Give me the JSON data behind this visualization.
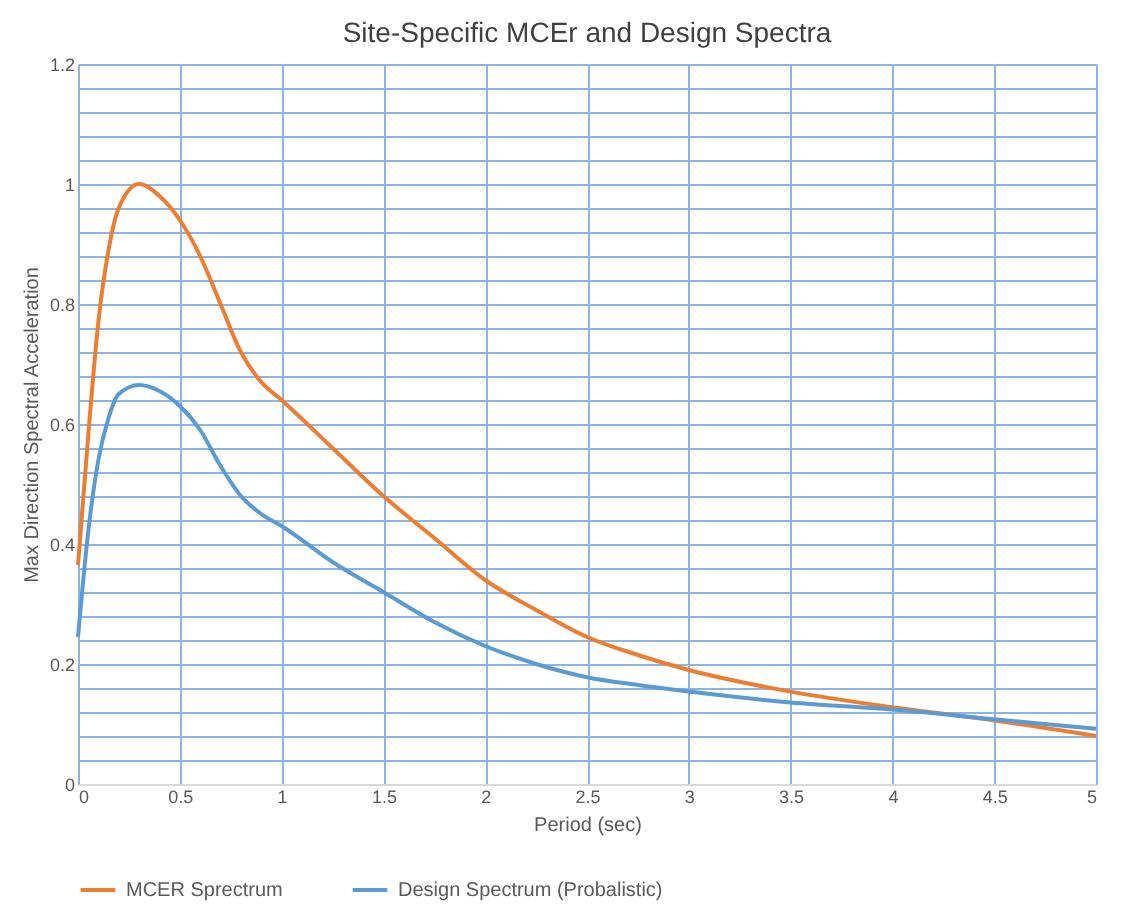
{
  "chart_data": {
    "type": "line",
    "title": "Site-Specific MCEr and Design Spectra",
    "xlabel": "Period (sec)",
    "ylabel": "Max Direction Spectral Acceleration",
    "xlim": [
      0,
      5
    ],
    "xticks": [
      0,
      0.5,
      1,
      1.5,
      2,
      2.5,
      3,
      3.5,
      4,
      4.5,
      5
    ],
    "ylim": [
      0,
      1.2
    ],
    "yticks": [
      0,
      {
        "value": 0.04,
        "label": null
      },
      {
        "value": 0.08,
        "label": null
      },
      {
        "value": 0.12,
        "label": null
      },
      {
        "value": 0.16,
        "label": null
      },
      0.2,
      {
        "value": 0.24,
        "label": null
      },
      {
        "value": 0.28,
        "label": null
      },
      {
        "value": 0.32,
        "label": null
      },
      {
        "value": 0.36,
        "label": null
      },
      0.4,
      {
        "value": 0.44,
        "label": null
      },
      {
        "value": 0.48,
        "label": null
      },
      {
        "value": 0.52,
        "label": null
      },
      {
        "value": 0.56,
        "label": null
      },
      0.6,
      {
        "value": 0.64,
        "label": null
      },
      {
        "value": 0.68,
        "label": null
      },
      {
        "value": 0.72,
        "label": null
      },
      {
        "value": 0.76,
        "label": null
      },
      0.8,
      {
        "value": 0.84,
        "label": null
      },
      {
        "value": 0.88,
        "label": null
      },
      {
        "value": 0.92,
        "label": null
      },
      {
        "value": 0.96,
        "label": null
      },
      1,
      {
        "value": 1.04,
        "label": null
      },
      {
        "value": 1.08,
        "label": null
      },
      {
        "value": 1.12,
        "label": null
      },
      {
        "value": 1.16,
        "label": null
      },
      1.2
    ],
    "grid": true,
    "legend": "bottom",
    "line_style": "solid",
    "marker": "none",
    "x": [
      0,
      0.05,
      0.1,
      0.15,
      0.2,
      0.3,
      0.4,
      0.5,
      0.6,
      0.7,
      0.8,
      0.9,
      1.0,
      1.25,
      1.5,
      1.75,
      2,
      2.25,
      2.5,
      2.75,
      3,
      3.5,
      4,
      4.5,
      5
    ],
    "series": [
      {
        "name": "MCER Sprectrum",
        "color": "#ed7d31",
        "values": [
          0.365,
          0.58,
          0.77,
          0.89,
          0.96,
          1.0,
          0.98,
          0.94,
          0.88,
          0.8,
          0.72,
          0.67,
          0.64,
          0.56,
          0.48,
          0.41,
          0.34,
          0.29,
          0.245,
          0.215,
          0.19,
          0.154,
          0.128,
          0.106,
          0.08
        ]
      },
      {
        "name": "Design Spectrum (Probalistic)",
        "color": "#5b9bd5",
        "values": [
          0.245,
          0.42,
          0.54,
          0.61,
          0.65,
          0.665,
          0.655,
          0.63,
          0.59,
          0.53,
          0.48,
          0.45,
          0.43,
          0.37,
          0.32,
          0.27,
          0.23,
          0.2,
          0.178,
          0.165,
          0.154,
          0.136,
          0.124,
          0.108,
          0.092
        ]
      }
    ]
  }
}
